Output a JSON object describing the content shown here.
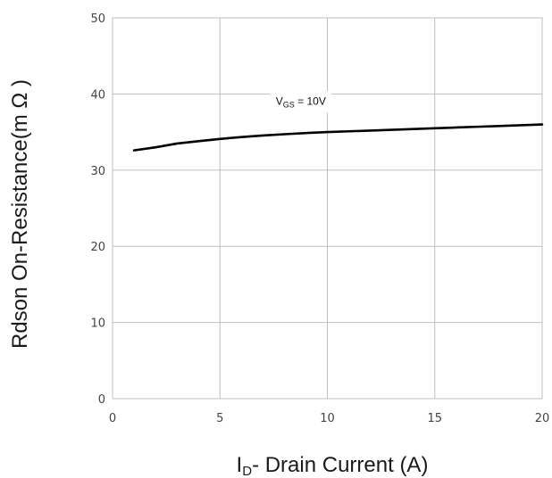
{
  "chart_data": {
    "type": "line",
    "title": "",
    "xlabel": {
      "main": "I",
      "sub": "D",
      "rest": "- Drain Current (A)"
    },
    "ylabel": "Rdson On-Resistance(m Ω )",
    "xlim": [
      0,
      20
    ],
    "ylim": [
      0,
      50
    ],
    "xticks": [
      "0",
      "5",
      "10",
      "15",
      "20"
    ],
    "yticks": [
      "0",
      "10",
      "20",
      "30",
      "40",
      "50"
    ],
    "xtick_values": [
      0,
      5,
      10,
      15,
      20
    ],
    "ytick_values": [
      0,
      10,
      20,
      30,
      40,
      50
    ],
    "grid": true,
    "series": [
      {
        "x": [
          1,
          2,
          3,
          4,
          5,
          6,
          7,
          8,
          9,
          10,
          11,
          12,
          13,
          14,
          15,
          16,
          17,
          18,
          19,
          20
        ],
        "y": [
          32.6,
          33.0,
          33.5,
          33.8,
          34.1,
          34.35,
          34.55,
          34.72,
          34.87,
          35.0,
          35.1,
          35.2,
          35.3,
          35.4,
          35.5,
          35.6,
          35.7,
          35.8,
          35.9,
          36.0
        ]
      }
    ],
    "annotations": [
      {
        "main": "V",
        "sub": "GS",
        "rest": " = 10V",
        "x": 7.6,
        "y": 38.6
      }
    ]
  },
  "colors": {
    "grid": "#bfbfbf",
    "frame": "#bfbfbf",
    "line": "#000000",
    "text": "#444444"
  }
}
